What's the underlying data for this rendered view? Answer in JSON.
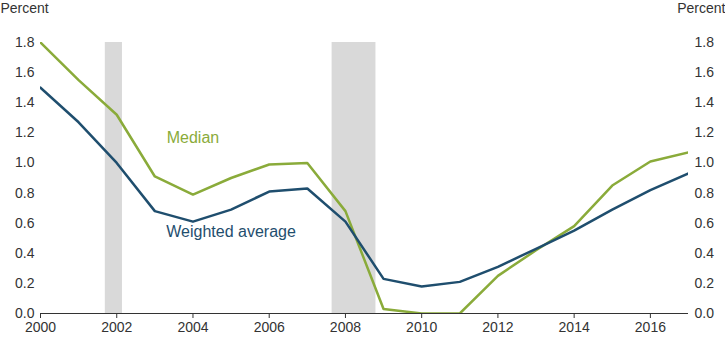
{
  "chart_data": {
    "type": "line",
    "ylabel": "Percent",
    "x": [
      2000,
      2001,
      2002,
      2003,
      2004,
      2005,
      2006,
      2007,
      2008,
      2009,
      2010,
      2011,
      2012,
      2013,
      2014,
      2015,
      2016,
      2017
    ],
    "series": [
      {
        "name": "Median",
        "color": "#8aab3a",
        "values": [
          1.8,
          1.55,
          1.32,
          0.91,
          0.79,
          0.9,
          0.99,
          1.0,
          0.68,
          0.03,
          0.0,
          0.0,
          0.25,
          0.42,
          0.58,
          0.85,
          1.01,
          1.07
        ]
      },
      {
        "name": "Weighted average",
        "color": "#1f4e6e",
        "values": [
          1.5,
          1.27,
          1.0,
          0.68,
          0.61,
          0.69,
          0.81,
          0.83,
          0.61,
          0.23,
          0.18,
          0.21,
          0.31,
          0.43,
          0.55,
          0.69,
          0.82,
          0.93
        ]
      }
    ],
    "recessions": [
      [
        2001.7,
        2002.15
      ],
      [
        2007.65,
        2008.8
      ]
    ],
    "xlim": [
      2000,
      2017
    ],
    "xticks": [
      2000,
      2002,
      2004,
      2006,
      2008,
      2010,
      2012,
      2014,
      2016
    ],
    "ylim": [
      0,
      1.8
    ],
    "yticks": [
      {
        "value": 0,
        "label": "0.0"
      },
      {
        "value": 0.2,
        "label": "0.2"
      },
      {
        "value": 0.4,
        "label": "0.4"
      },
      {
        "value": 0.6,
        "label": "0.6"
      },
      {
        "value": 0.8,
        "label": "0.8"
      },
      {
        "value": 1.0,
        "label": "1.0"
      },
      {
        "value": 1.2,
        "label": "1.2"
      },
      {
        "value": 1.4,
        "label": "1.4"
      },
      {
        "value": 1.6,
        "label": "1.6"
      },
      {
        "value": 1.8,
        "label": "1.8"
      }
    ],
    "grid": false
  }
}
